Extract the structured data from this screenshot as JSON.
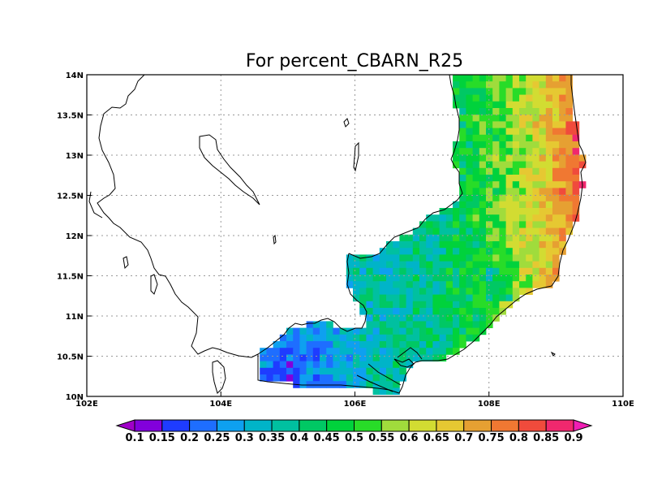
{
  "title": "For percent_CBARN_R25",
  "map": {
    "lon_range": [
      102,
      110
    ],
    "lat_range": [
      10,
      14
    ],
    "x_tick_labels": [
      "102E",
      "104E",
      "106E",
      "108E",
      "110E"
    ],
    "y_tick_labels": [
      "10N",
      "10.5N",
      "11N",
      "11.5N",
      "12N",
      "12.5N",
      "13N",
      "13.5N",
      "14N"
    ],
    "grid": "dotted",
    "field": "percent_CBARN_R25",
    "pattern": "values lowest (0.1-0.25) in southwest delta region near 105E 10.3N, mostly 0.3-0.5 across interior, increasing to 0.7-0.85 along eastern coast near 109E 12.5-14N"
  },
  "colorbar": {
    "labels": [
      "0.1",
      "0.15",
      "0.2",
      "0.25",
      "0.3",
      "0.35",
      "0.4",
      "0.45",
      "0.5",
      "0.55",
      "0.6",
      "0.65",
      "0.7",
      "0.75",
      "0.8",
      "0.85",
      "0.9"
    ],
    "colors": [
      "#a000c8",
      "#8200dc",
      "#1e3cff",
      "#1e6eff",
      "#0ea0f0",
      "#00b4c8",
      "#00c0a0",
      "#00c864",
      "#00d23c",
      "#28dc28",
      "#a0dc3c",
      "#d2dc32",
      "#e6c832",
      "#e6a032",
      "#f07832",
      "#f04b3c",
      "#f0286e",
      "#f01eb4"
    ]
  }
}
